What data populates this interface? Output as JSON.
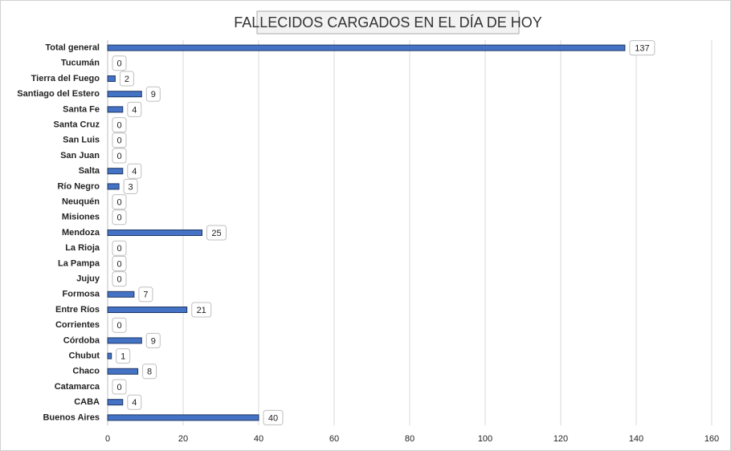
{
  "chart_data": {
    "type": "bar",
    "orientation": "horizontal",
    "title": "FALLECIDOS CARGADOS EN EL DÍA DE HOY",
    "categories": [
      "Total general",
      "Tucumán",
      "Tierra del Fuego",
      "Santiago del Estero",
      "Santa Fe",
      "Santa Cruz",
      "San Luis",
      "San Juan",
      "Salta",
      "Río Negro",
      "Neuquén",
      "Misiones",
      "Mendoza",
      "La Rioja",
      "La Pampa",
      "Jujuy",
      "Formosa",
      "Entre Ríos",
      "Corrientes",
      "Córdoba",
      "Chubut",
      "Chaco",
      "Catamarca",
      "CABA",
      "Buenos Aires"
    ],
    "values": [
      137,
      0,
      2,
      9,
      4,
      0,
      0,
      0,
      4,
      3,
      0,
      0,
      25,
      0,
      0,
      0,
      7,
      21,
      0,
      9,
      1,
      8,
      0,
      4,
      40
    ],
    "color": "#4472c4",
    "xlim": [
      0,
      160
    ],
    "xticks": [
      0,
      20,
      40,
      60,
      80,
      100,
      120,
      140,
      160
    ],
    "grid": true,
    "data_labels": true
  }
}
